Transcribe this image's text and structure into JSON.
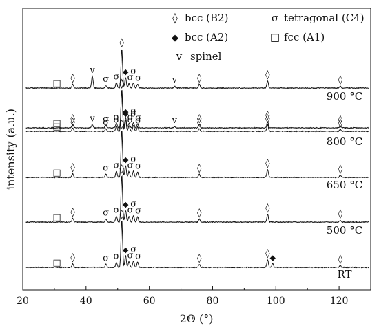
{
  "chart_data": {
    "type": "line",
    "xlabel": "2Θ (°)",
    "ylabel": "intensity (a.u.)",
    "xlim": [
      20,
      130
    ],
    "xticks": [
      20,
      40,
      60,
      80,
      100,
      120
    ],
    "tick_labels": [
      "20",
      "40",
      "60",
      "80",
      "100",
      "120"
    ],
    "legend": [
      {
        "symbol": "◊",
        "label": "bcc (B2)"
      },
      {
        "symbol": "σ",
        "label": "tetragonal (C4)"
      },
      {
        "symbol": "◆",
        "label": "bcc (A2)"
      },
      {
        "symbol": "□",
        "label": "fcc (A1)"
      },
      {
        "symbol": "v",
        "label": "spinel"
      }
    ],
    "series": [
      {
        "name": "RT",
        "peaks": [
          {
            "x": 35.8,
            "h": 0.3
          },
          {
            "x": 46.3,
            "h": 0.25
          },
          {
            "x": 49.6,
            "h": 0.4
          },
          {
            "x": 51.3,
            "h": 3.6
          },
          {
            "x": 52.5,
            "h": 0.9
          },
          {
            "x": 53.6,
            "h": 0.45
          },
          {
            "x": 55.0,
            "h": 0.5
          },
          {
            "x": 56.3,
            "h": 0.4
          },
          {
            "x": 75.8,
            "h": 0.25
          },
          {
            "x": 97.4,
            "h": 0.6
          },
          {
            "x": 99.0,
            "h": 0.3
          },
          {
            "x": 120.4,
            "h": 0.15
          }
        ],
        "markers": [
          {
            "x": 30.8,
            "s": "□"
          },
          {
            "x": 35.8,
            "s": "◊"
          },
          {
            "x": 46.3,
            "s": "σ"
          },
          {
            "x": 49.6,
            "s": "σ"
          },
          {
            "x": 51.3,
            "s": "◊"
          },
          {
            "x": 52.5,
            "s": "◆"
          },
          {
            "x": 54.0,
            "s": "σ"
          },
          {
            "x": 55.0,
            "s": "σ"
          },
          {
            "x": 56.5,
            "s": "σ"
          },
          {
            "x": 75.8,
            "s": "◊"
          },
          {
            "x": 97.4,
            "s": "◊"
          },
          {
            "x": 99.0,
            "s": "◆"
          },
          {
            "x": 120.4,
            "s": "◊"
          }
        ]
      },
      {
        "name": "500 °C",
        "peaks": [
          {
            "x": 35.8,
            "h": 0.3
          },
          {
            "x": 46.3,
            "h": 0.25
          },
          {
            "x": 49.6,
            "h": 0.45
          },
          {
            "x": 51.3,
            "h": 3.6
          },
          {
            "x": 52.5,
            "h": 0.9
          },
          {
            "x": 53.6,
            "h": 0.45
          },
          {
            "x": 55.0,
            "h": 0.5
          },
          {
            "x": 56.3,
            "h": 0.4
          },
          {
            "x": 75.8,
            "h": 0.25
          },
          {
            "x": 97.4,
            "h": 0.6
          },
          {
            "x": 120.4,
            "h": 0.15
          }
        ],
        "markers": [
          {
            "x": 30.8,
            "s": "□"
          },
          {
            "x": 35.8,
            "s": "◊"
          },
          {
            "x": 46.3,
            "s": "σ"
          },
          {
            "x": 49.6,
            "s": "σ"
          },
          {
            "x": 51.3,
            "s": "◊"
          },
          {
            "x": 52.5,
            "s": "◆"
          },
          {
            "x": 54.0,
            "s": "σ"
          },
          {
            "x": 55.0,
            "s": "σ"
          },
          {
            "x": 56.5,
            "s": "σ"
          },
          {
            "x": 75.8,
            "s": "◊"
          },
          {
            "x": 97.4,
            "s": "◊"
          },
          {
            "x": 120.4,
            "s": "◊"
          }
        ]
      },
      {
        "name": "650 °C",
        "peaks": [
          {
            "x": 35.8,
            "h": 0.3
          },
          {
            "x": 46.3,
            "h": 0.25
          },
          {
            "x": 49.6,
            "h": 0.45
          },
          {
            "x": 51.3,
            "h": 3.6
          },
          {
            "x": 52.5,
            "h": 0.9
          },
          {
            "x": 53.6,
            "h": 0.45
          },
          {
            "x": 55.0,
            "h": 0.5
          },
          {
            "x": 56.3,
            "h": 0.4
          },
          {
            "x": 75.8,
            "h": 0.25
          },
          {
            "x": 97.4,
            "h": 0.6
          },
          {
            "x": 120.4,
            "h": 0.15
          }
        ],
        "markers": [
          {
            "x": 30.8,
            "s": "□"
          },
          {
            "x": 35.8,
            "s": "◊"
          },
          {
            "x": 46.3,
            "s": "σ"
          },
          {
            "x": 49.6,
            "s": "σ"
          },
          {
            "x": 51.3,
            "s": "◊"
          },
          {
            "x": 52.5,
            "s": "◆"
          },
          {
            "x": 54.0,
            "s": "σ"
          },
          {
            "x": 55.0,
            "s": "σ"
          },
          {
            "x": 56.5,
            "s": "σ"
          },
          {
            "x": 75.8,
            "s": "◊"
          },
          {
            "x": 97.4,
            "s": "◊"
          },
          {
            "x": 120.4,
            "s": "◊"
          }
        ]
      },
      {
        "name": "800 °C",
        "peaks": [
          {
            "x": 35.8,
            "h": 0.25
          },
          {
            "x": 46.3,
            "h": 0.2
          },
          {
            "x": 49.6,
            "h": 0.4
          },
          {
            "x": 51.3,
            "h": 3.2
          },
          {
            "x": 52.5,
            "h": 0.9
          },
          {
            "x": 53.6,
            "h": 0.4
          },
          {
            "x": 55.0,
            "h": 0.45
          },
          {
            "x": 56.3,
            "h": 0.35
          },
          {
            "x": 75.8,
            "h": 0.2
          },
          {
            "x": 97.4,
            "h": 0.5
          },
          {
            "x": 120.4,
            "h": 0.15
          }
        ],
        "markers": [
          {
            "x": 30.8,
            "s": "□"
          },
          {
            "x": 35.8,
            "s": "◊"
          },
          {
            "x": 46.3,
            "s": "σ"
          },
          {
            "x": 49.6,
            "s": "σ"
          },
          {
            "x": 51.3,
            "s": "◊"
          },
          {
            "x": 52.5,
            "s": "◆"
          },
          {
            "x": 54.0,
            "s": "σ"
          },
          {
            "x": 55.0,
            "s": "σ"
          },
          {
            "x": 56.5,
            "s": "σ"
          },
          {
            "x": 75.8,
            "s": "◊"
          },
          {
            "x": 97.4,
            "s": "◊"
          },
          {
            "x": 120.4,
            "s": "◊"
          }
        ]
      },
      {
        "name": "900 °C",
        "peaks": [
          {
            "x": 35.8,
            "h": 0.25
          },
          {
            "x": 42.0,
            "h": 0.25
          },
          {
            "x": 46.3,
            "h": 0.2
          },
          {
            "x": 49.6,
            "h": 0.35
          },
          {
            "x": 51.3,
            "h": 2.9
          },
          {
            "x": 52.5,
            "h": 0.8
          },
          {
            "x": 53.6,
            "h": 0.35
          },
          {
            "x": 55.0,
            "h": 0.4
          },
          {
            "x": 56.3,
            "h": 0.3
          },
          {
            "x": 68.0,
            "h": 0.1
          },
          {
            "x": 75.8,
            "h": 0.25
          },
          {
            "x": 97.4,
            "h": 0.5
          },
          {
            "x": 120.4,
            "h": 0.15
          }
        ],
        "markers": [
          {
            "x": 30.8,
            "s": "□"
          },
          {
            "x": 35.8,
            "s": "◊"
          },
          {
            "x": 42.0,
            "s": "v"
          },
          {
            "x": 46.3,
            "s": "σ"
          },
          {
            "x": 49.6,
            "s": "σ"
          },
          {
            "x": 51.3,
            "s": "◊"
          },
          {
            "x": 52.5,
            "s": "◆"
          },
          {
            "x": 54.0,
            "s": "σ"
          },
          {
            "x": 55.0,
            "s": "σ"
          },
          {
            "x": 56.5,
            "s": "σ"
          },
          {
            "x": 68.0,
            "s": "v"
          },
          {
            "x": 75.8,
            "s": "◊"
          },
          {
            "x": 97.4,
            "s": "◊"
          },
          {
            "x": 120.4,
            "s": "◊"
          }
        ]
      },
      {
        "name": "",
        "peaks": [
          {
            "x": 35.8,
            "h": 0.3
          },
          {
            "x": 42.0,
            "h": 0.9
          },
          {
            "x": 46.3,
            "h": 0.2
          },
          {
            "x": 49.6,
            "h": 0.4
          },
          {
            "x": 51.3,
            "h": 3.0
          },
          {
            "x": 52.5,
            "h": 0.8
          },
          {
            "x": 53.6,
            "h": 0.35
          },
          {
            "x": 55.0,
            "h": 0.4
          },
          {
            "x": 56.3,
            "h": 0.3
          },
          {
            "x": 68.0,
            "h": 0.15
          },
          {
            "x": 75.8,
            "h": 0.3
          },
          {
            "x": 97.4,
            "h": 0.55
          },
          {
            "x": 120.4,
            "h": 0.15
          }
        ],
        "markers": [
          {
            "x": 30.8,
            "s": "□"
          },
          {
            "x": 35.8,
            "s": "◊"
          },
          {
            "x": 42.0,
            "s": "v"
          },
          {
            "x": 46.3,
            "s": "σ"
          },
          {
            "x": 49.6,
            "s": "σ"
          },
          {
            "x": 51.3,
            "s": "◊"
          },
          {
            "x": 52.5,
            "s": "◆"
          },
          {
            "x": 54.0,
            "s": "σ"
          },
          {
            "x": 55.0,
            "s": "σ"
          },
          {
            "x": 56.5,
            "s": "σ"
          },
          {
            "x": 68.0,
            "s": "v"
          },
          {
            "x": 75.8,
            "s": "◊"
          },
          {
            "x": 97.4,
            "s": "◊"
          },
          {
            "x": 120.4,
            "s": "◊"
          }
        ]
      }
    ],
    "colors": {
      "line": "#111111",
      "fcc_marker": "#9a9a9a"
    }
  }
}
